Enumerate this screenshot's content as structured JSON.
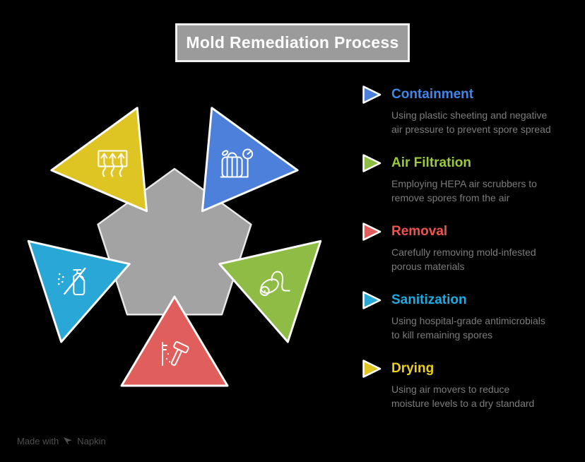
{
  "title": "Mold Remediation Process",
  "steps": [
    {
      "id": "containment",
      "label": "Containment",
      "description": "Using plastic sheeting and negative\nair pressure to prevent spore spread",
      "color": "#4C80DA",
      "label_color": "#4285E8",
      "icon": "pressure-gauge-bag-icon"
    },
    {
      "id": "air_filtration",
      "label": "Air Filtration",
      "description": "Employing HEPA air scrubbers to\nremove spores from the air",
      "color": "#8FBC45",
      "label_color": "#9BCA3C",
      "icon": "vacuum-cleaner-icon"
    },
    {
      "id": "removal",
      "label": "Removal",
      "description": "Carefully removing mold-infested\nporous materials",
      "color": "#E05E5B",
      "label_color": "#F2514D",
      "icon": "hammer-demolition-icon"
    },
    {
      "id": "sanitization",
      "label": "Sanitization",
      "description": "Using hospital-grade antimicrobials\nto kill remaining spores",
      "color": "#29A7D6",
      "label_color": "#1BACE3",
      "icon": "spray-bottle-icon"
    },
    {
      "id": "drying",
      "label": "Drying",
      "description": "Using air movers to reduce\nmoisture levels to a dry standard",
      "color": "#DFC524",
      "label_color": "#EDD01E",
      "icon": "air-mover-icon"
    }
  ],
  "diagram": {
    "pentagon_fill": "#A3A3A3",
    "pentagon_outline": "#E8E8E8",
    "triangle_outline": "#FAFAFA",
    "icon_stroke": "#FFFFFF"
  },
  "footer": {
    "made_with": "Made with",
    "brand": "Napkin"
  },
  "colors": {
    "background": "#000000",
    "title_box_bg": "#9B9B9B",
    "title_box_border": "#F0F0F0",
    "title_text": "#FFFFFF",
    "description_text": "#7C7C7C",
    "footer_text": "#4F4F4F"
  }
}
